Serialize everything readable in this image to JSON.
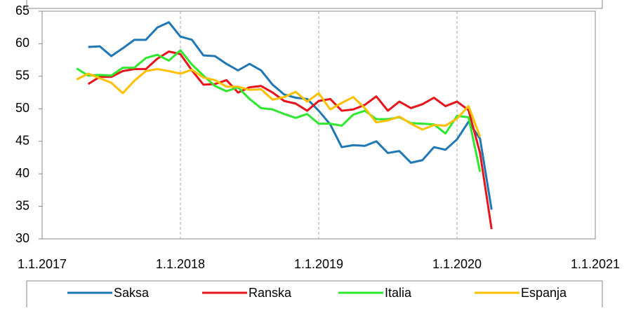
{
  "chart_data": {
    "type": "line",
    "x": [
      "1.4.2017",
      "1.5.2017",
      "1.6.2017",
      "1.7.2017",
      "1.8.2017",
      "1.9.2017",
      "1.10.2017",
      "1.11.2017",
      "1.12.2017",
      "1.1.2018",
      "1.2.2018",
      "1.3.2018",
      "1.4.2018",
      "1.5.2018",
      "1.6.2018",
      "1.7.2018",
      "1.8.2018",
      "1.9.2018",
      "1.10.2018",
      "1.11.2018",
      "1.12.2018",
      "1.1.2019",
      "1.2.2019",
      "1.3.2019",
      "1.4.2019",
      "1.5.2019",
      "1.6.2019",
      "1.7.2019",
      "1.8.2019",
      "1.9.2019",
      "1.10.2019",
      "1.11.2019",
      "1.12.2019",
      "1.1.2020",
      "1.2.2020",
      "1.3.2020",
      "1.4.2020"
    ],
    "series": [
      {
        "name": "Saksa",
        "color": "#1f77b4",
        "values": [
          null,
          59.5,
          59.6,
          58.1,
          59.3,
          60.6,
          60.6,
          62.5,
          63.3,
          61.1,
          60.6,
          58.2,
          58.1,
          56.9,
          55.9,
          56.9,
          55.9,
          53.7,
          52.2,
          51.7,
          51.5,
          49.7,
          47.6,
          44.1,
          44.4,
          44.3,
          45.0,
          43.2,
          43.5,
          41.7,
          42.1,
          44.1,
          43.7,
          45.3,
          48.0,
          45.4,
          34.5
        ]
      },
      {
        "name": "Ranska",
        "color": "#e8141b",
        "values": [
          null,
          53.8,
          54.9,
          54.9,
          55.8,
          56.1,
          56.1,
          57.7,
          58.8,
          58.4,
          55.9,
          53.7,
          53.8,
          54.4,
          52.5,
          53.3,
          53.5,
          52.5,
          51.2,
          50.8,
          49.7,
          51.2,
          51.5,
          49.7,
          49.9,
          50.6,
          51.9,
          49.7,
          51.1,
          50.1,
          50.7,
          51.7,
          50.4,
          51.1,
          49.8,
          43.2,
          31.5
        ]
      },
      {
        "name": "Italia",
        "color": "#2ee82e",
        "values": [
          56.2,
          55.1,
          55.2,
          55.1,
          56.3,
          56.3,
          57.8,
          58.3,
          57.4,
          59.0,
          56.8,
          55.1,
          53.5,
          52.7,
          53.3,
          51.5,
          50.1,
          49.9,
          49.2,
          48.6,
          49.2,
          47.7,
          47.7,
          47.4,
          49.1,
          49.7,
          48.4,
          48.4,
          48.7,
          47.8,
          47.7,
          47.6,
          46.2,
          48.9,
          48.7,
          40.3,
          null
        ]
      },
      {
        "name": "Espanja",
        "color": "#ffc000",
        "values": [
          54.5,
          55.4,
          54.7,
          54.0,
          52.4,
          54.3,
          55.8,
          56.1,
          55.8,
          55.4,
          56.0,
          54.8,
          54.4,
          53.4,
          53.4,
          52.9,
          53.0,
          51.4,
          51.8,
          52.6,
          51.1,
          52.4,
          49.9,
          50.9,
          51.8,
          50.1,
          47.9,
          48.2,
          48.8,
          47.7,
          46.8,
          47.5,
          47.4,
          48.5,
          50.4,
          45.7,
          null
        ]
      }
    ],
    "xlim": [
      "1.1.2017",
      "1.1.2021"
    ],
    "xticks": [
      "1.1.2017",
      "1.1.2018",
      "1.1.2019",
      "1.1.2020",
      "1.1.2021"
    ],
    "ylim": [
      30,
      65
    ],
    "yticks": [
      30,
      35,
      40,
      45,
      50,
      55,
      60,
      65
    ],
    "grid": true,
    "legend": "bottom"
  }
}
